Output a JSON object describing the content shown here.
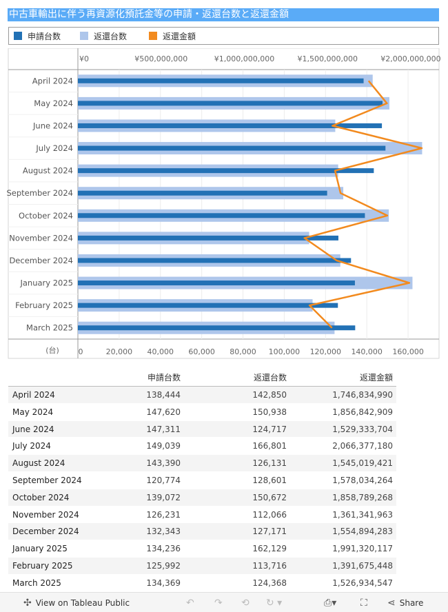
{
  "title": "中古車輸出に伴う再資源化預託金等の申請・返還台数と返還金額",
  "legend": {
    "items": [
      {
        "label": "申請台数",
        "color": "#2271b5"
      },
      {
        "label": "返還台数",
        "color": "#aec6eb"
      },
      {
        "label": "返還金額",
        "color": "#f28a1e"
      }
    ]
  },
  "chart_data": {
    "type": "bar",
    "categories": [
      "April 2024",
      "May 2024",
      "June 2024",
      "July 2024",
      "August 2024",
      "September 2024",
      "October 2024",
      "November 2024",
      "December 2024",
      "January 2025",
      "February 2025",
      "March 2025"
    ],
    "series": [
      {
        "name": "申請台数",
        "values": [
          138444,
          147620,
          147311,
          149039,
          143390,
          120774,
          139072,
          126231,
          132343,
          134236,
          125992,
          134369
        ],
        "color": "#2271b5"
      },
      {
        "name": "返還台数",
        "values": [
          142850,
          150938,
          124717,
          166801,
          126131,
          128601,
          150672,
          112066,
          127171,
          162129,
          113716,
          124368
        ],
        "color": "#aec6eb"
      },
      {
        "name": "返還金額",
        "values": [
          1746834990,
          1856842909,
          1529333704,
          2066377180,
          1545019421,
          1578034264,
          1858789268,
          1361341963,
          1554894283,
          1991320117,
          1391675448,
          1526934547
        ],
        "color": "#f28a1e"
      }
    ],
    "top_axis": {
      "range": [
        0,
        2170000000
      ],
      "ticks": [
        0,
        500000000,
        1000000000,
        1500000000,
        2000000000
      ],
      "tick_labels": [
        "¥0",
        "¥500,000,000",
        "¥1,000,000,000",
        "¥1,500,000,000",
        "¥2,000,000,000"
      ]
    },
    "bottom_axis": {
      "range": [
        0,
        175000
      ],
      "ticks": [
        0,
        20000,
        40000,
        60000,
        80000,
        100000,
        120000,
        140000,
        160000
      ],
      "tick_labels": [
        "0",
        "20,000",
        "40,000",
        "60,000",
        "80,000",
        "100,000",
        "120,000",
        "140,000",
        "160,000"
      ],
      "unit_label": "(台)"
    }
  },
  "table": {
    "headers": [
      "",
      "申請台数",
      "返還台数",
      "返還金額"
    ],
    "rows": [
      [
        "April 2024",
        "138,444",
        "142,850",
        "1,746,834,990"
      ],
      [
        "May 2024",
        "147,620",
        "150,938",
        "1,856,842,909"
      ],
      [
        "June 2024",
        "147,311",
        "124,717",
        "1,529,333,704"
      ],
      [
        "July 2024",
        "149,039",
        "166,801",
        "2,066,377,180"
      ],
      [
        "August 2024",
        "143,390",
        "126,131",
        "1,545,019,421"
      ],
      [
        "September 2024",
        "120,774",
        "128,601",
        "1,578,034,264"
      ],
      [
        "October 2024",
        "139,072",
        "150,672",
        "1,858,789,268"
      ],
      [
        "November 2024",
        "126,231",
        "112,066",
        "1,361,341,963"
      ],
      [
        "December 2024",
        "132,343",
        "127,171",
        "1,554,894,283"
      ],
      [
        "January 2025",
        "134,236",
        "162,129",
        "1,991,320,117"
      ],
      [
        "February 2025",
        "125,992",
        "113,716",
        "1,391,675,448"
      ],
      [
        "March 2025",
        "134,369",
        "124,368",
        "1,526,934,547"
      ]
    ]
  },
  "footer": {
    "view_label": "View on Tableau Public",
    "share_label": "Share"
  }
}
